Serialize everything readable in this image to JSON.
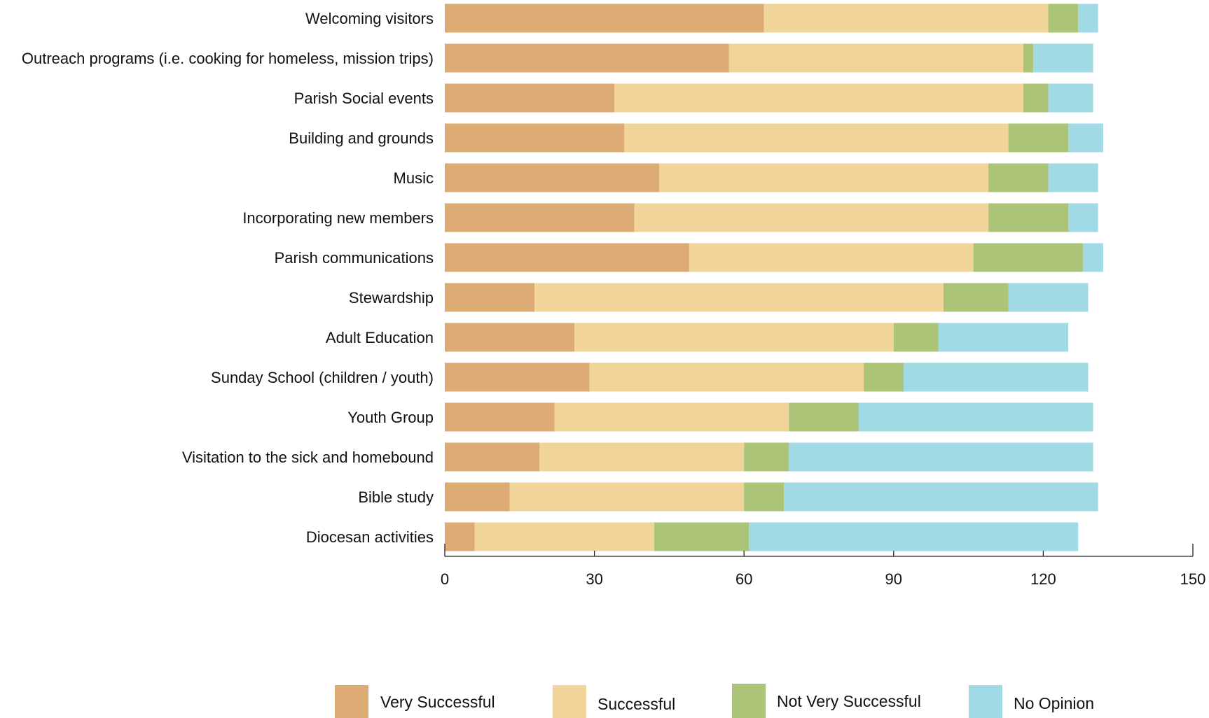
{
  "chart_data": {
    "type": "bar",
    "orientation": "horizontal",
    "stacked": true,
    "title": "",
    "xlabel": "",
    "ylabel": "",
    "xlim": [
      0,
      150
    ],
    "xticks": [
      0,
      30,
      60,
      90,
      120,
      150
    ],
    "grid": false,
    "legend_position": "bottom",
    "categories": [
      "Welcoming visitors",
      "Outreach programs (i.e. cooking for homeless, mission trips)",
      "Parish Social events",
      "Building and grounds",
      "Music",
      "Incorporating new members",
      "Parish communications",
      "Stewardship",
      "Adult Education",
      "Sunday School (children / youth)",
      "Youth Group",
      "Visitation to the sick and homebound",
      "Bible study",
      "Diocesan activities"
    ],
    "series": [
      {
        "name": "Very Successful",
        "color": "#dcab73",
        "values": [
          64,
          57,
          34,
          36,
          43,
          38,
          49,
          18,
          26,
          29,
          22,
          19,
          13,
          6
        ]
      },
      {
        "name": "Successful",
        "color": "#f0d49a",
        "values": [
          57,
          59,
          82,
          77,
          66,
          71,
          57,
          82,
          64,
          55,
          47,
          41,
          47,
          36
        ]
      },
      {
        "name": "Not Very Successful",
        "color": "#abc477",
        "values": [
          6,
          2,
          5,
          12,
          12,
          16,
          22,
          13,
          9,
          8,
          14,
          9,
          8,
          19
        ]
      },
      {
        "name": "No Opinion",
        "color": "#a1d9e4",
        "values": [
          4,
          12,
          9,
          7,
          10,
          6,
          4,
          16,
          26,
          37,
          47,
          61,
          63,
          66
        ]
      }
    ]
  }
}
